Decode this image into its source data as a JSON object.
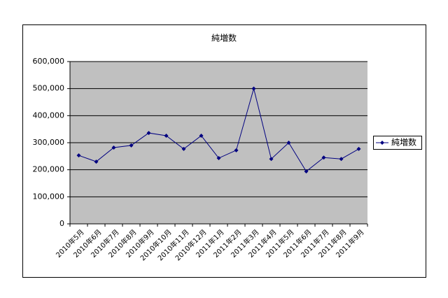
{
  "chart_data": {
    "type": "line",
    "title": "純増数",
    "categories": [
      "2010年5月",
      "2010年6月",
      "2010年7月",
      "2010年8月",
      "2010年9月",
      "2010年10月",
      "2010年11月",
      "2010年12月",
      "2011年1月",
      "2011年2月",
      "2011年3月",
      "2011年4月",
      "2011年5月",
      "2011年6月",
      "2011年7月",
      "2011年8月",
      "2011年9月"
    ],
    "series": [
      {
        "name": "純増数",
        "color": "#000080",
        "values": [
          253000,
          230000,
          282000,
          290000,
          336000,
          326000,
          277000,
          326000,
          243000,
          272000,
          500000,
          240000,
          300000,
          194000,
          245000,
          240000,
          277000
        ]
      }
    ],
    "ylim": [
      0,
      600000
    ],
    "yticks": [
      0,
      {
        "value": 100000,
        "label": "100,000"
      },
      {
        "value": 200000,
        "label": "200,000"
      },
      {
        "value": 300000,
        "label": "300,000"
      },
      {
        "value": 400000,
        "label": "400,000"
      },
      {
        "value": 500000,
        "label": "500,000"
      },
      {
        "value": 600000,
        "label": "600,000"
      }
    ],
    "grid": true,
    "legend": "right",
    "plot_background": "#c0c0c0"
  }
}
